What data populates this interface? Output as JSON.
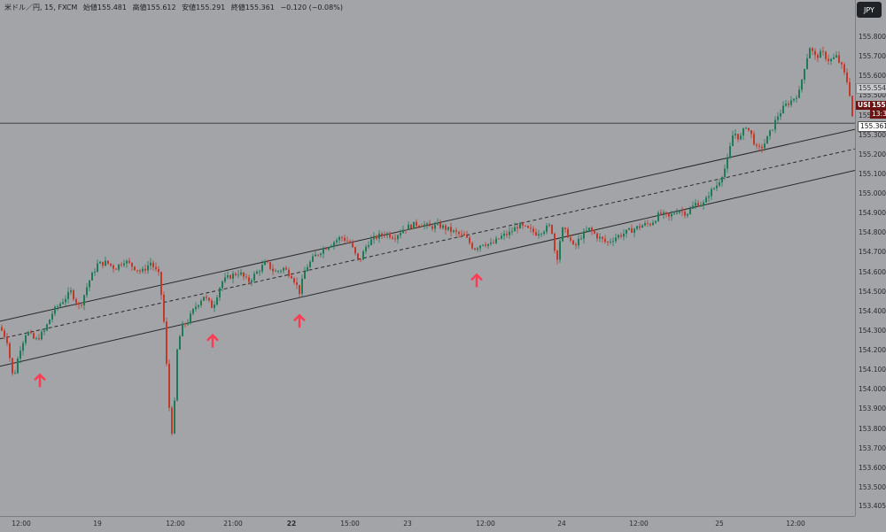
{
  "header": {
    "symbol": "米ドル／円, 15, FXCM",
    "open": "始値155.481",
    "high": "高値155.612",
    "low": "安値155.291",
    "close": "終値155.361",
    "change": "−0.120 (−0.08%)"
  },
  "currency_button": "JPY",
  "price_labels": {
    "symbol_tag": "USDJPY",
    "current_price": "155.361",
    "countdown": "13:38",
    "line_price": "155.361",
    "prev_price": "155.554"
  },
  "colors": {
    "background": "#a3a4a8",
    "up": "#1f7a58",
    "down": "#c0392b",
    "channel": "#2a2a2a",
    "arrow": "#ff3b52",
    "tag_bg": "#6b1414"
  },
  "chart_data": {
    "type": "candlestick",
    "ylim": [
      153.4,
      155.9
    ],
    "y_ticks": [
      "155.800",
      "155.700",
      "155.600",
      "155.500",
      "155.400",
      "155.300",
      "155.200",
      "155.100",
      "155.000",
      "154.900",
      "154.800",
      "154.700",
      "154.600",
      "154.500",
      "154.400",
      "154.300",
      "154.200",
      "154.100",
      "154.000",
      "153.900",
      "153.800",
      "153.700",
      "153.600",
      "153.500",
      "153.405"
    ],
    "x_ticks": [
      {
        "label": "12:00",
        "bold": false
      },
      {
        "label": "19",
        "bold": false
      },
      {
        "label": "12:00",
        "bold": false
      },
      {
        "label": "21:00",
        "bold": false
      },
      {
        "label": "22",
        "bold": true
      },
      {
        "label": "15:00",
        "bold": false
      },
      {
        "label": "23",
        "bold": false
      },
      {
        "label": "12:00",
        "bold": false
      },
      {
        "label": "24",
        "bold": false
      },
      {
        "label": "12:00",
        "bold": false
      },
      {
        "label": "25",
        "bold": false
      },
      {
        "label": "12:00",
        "bold": false
      }
    ],
    "price_path": [
      [
        0,
        154.32
      ],
      [
        8,
        154.25
      ],
      [
        15,
        154.05
      ],
      [
        22,
        154.2
      ],
      [
        30,
        154.3
      ],
      [
        40,
        154.25
      ],
      [
        50,
        154.3
      ],
      [
        60,
        154.4
      ],
      [
        70,
        154.45
      ],
      [
        80,
        154.5
      ],
      [
        90,
        154.42
      ],
      [
        100,
        154.55
      ],
      [
        110,
        154.64
      ],
      [
        120,
        154.65
      ],
      [
        130,
        154.62
      ],
      [
        140,
        154.66
      ],
      [
        150,
        154.63
      ],
      [
        160,
        154.6
      ],
      [
        170,
        154.65
      ],
      [
        180,
        154.58
      ],
      [
        186,
        154.3
      ],
      [
        190,
        153.95
      ],
      [
        195,
        153.75
      ],
      [
        200,
        154.2
      ],
      [
        205,
        154.32
      ],
      [
        212,
        154.35
      ],
      [
        220,
        154.42
      ],
      [
        230,
        154.48
      ],
      [
        240,
        154.42
      ],
      [
        250,
        154.55
      ],
      [
        260,
        154.58
      ],
      [
        270,
        154.6
      ],
      [
        280,
        154.55
      ],
      [
        290,
        154.6
      ],
      [
        300,
        154.65
      ],
      [
        310,
        154.6
      ],
      [
        320,
        154.62
      ],
      [
        330,
        154.58
      ],
      [
        338,
        154.5
      ],
      [
        345,
        154.62
      ],
      [
        355,
        154.68
      ],
      [
        365,
        154.72
      ],
      [
        375,
        154.75
      ],
      [
        385,
        154.78
      ],
      [
        395,
        154.75
      ],
      [
        405,
        154.65
      ],
      [
        415,
        154.75
      ],
      [
        425,
        154.78
      ],
      [
        435,
        154.8
      ],
      [
        445,
        154.78
      ],
      [
        455,
        154.82
      ],
      [
        465,
        154.84
      ],
      [
        475,
        154.85
      ],
      [
        485,
        154.83
      ],
      [
        495,
        154.84
      ],
      [
        505,
        154.82
      ],
      [
        515,
        154.8
      ],
      [
        525,
        154.78
      ],
      [
        535,
        154.72
      ],
      [
        545,
        154.75
      ],
      [
        555,
        154.74
      ],
      [
        565,
        154.78
      ],
      [
        575,
        154.8
      ],
      [
        585,
        154.84
      ],
      [
        595,
        154.82
      ],
      [
        605,
        154.8
      ],
      [
        615,
        154.82
      ],
      [
        622,
        154.84
      ],
      [
        628,
        154.65
      ],
      [
        634,
        154.82
      ],
      [
        640,
        154.8
      ],
      [
        648,
        154.72
      ],
      [
        655,
        154.78
      ],
      [
        665,
        154.82
      ],
      [
        675,
        154.78
      ],
      [
        685,
        154.75
      ],
      [
        695,
        154.78
      ],
      [
        705,
        154.8
      ],
      [
        715,
        154.82
      ],
      [
        725,
        154.84
      ],
      [
        735,
        154.85
      ],
      [
        745,
        154.9
      ],
      [
        755,
        154.88
      ],
      [
        765,
        154.92
      ],
      [
        775,
        154.9
      ],
      [
        785,
        154.95
      ],
      [
        795,
        154.95
      ],
      [
        800,
        155.0
      ],
      [
        810,
        155.05
      ],
      [
        820,
        155.15
      ],
      [
        828,
        155.32
      ],
      [
        835,
        155.28
      ],
      [
        842,
        155.35
      ],
      [
        848,
        155.3
      ],
      [
        855,
        155.22
      ],
      [
        862,
        155.25
      ],
      [
        870,
        155.32
      ],
      [
        878,
        155.4
      ],
      [
        886,
        155.45
      ],
      [
        894,
        155.48
      ],
      [
        902,
        155.52
      ],
      [
        908,
        155.65
      ],
      [
        914,
        155.75
      ],
      [
        920,
        155.7
      ],
      [
        928,
        155.72
      ],
      [
        936,
        155.68
      ],
      [
        944,
        155.7
      ],
      [
        950,
        155.65
      ],
      [
        958,
        155.55
      ],
      [
        963,
        155.36
      ]
    ],
    "channel": {
      "upper": [
        [
          0,
          154.35
        ],
        [
          965,
          155.33
        ]
      ],
      "mid": [
        [
          0,
          154.26
        ],
        [
          965,
          155.23
        ]
      ],
      "lower": [
        [
          0,
          154.12
        ],
        [
          965,
          155.12
        ]
      ]
    },
    "horizontal_line": 155.361,
    "arrows_x": [
      45,
      240,
      338,
      538
    ]
  }
}
